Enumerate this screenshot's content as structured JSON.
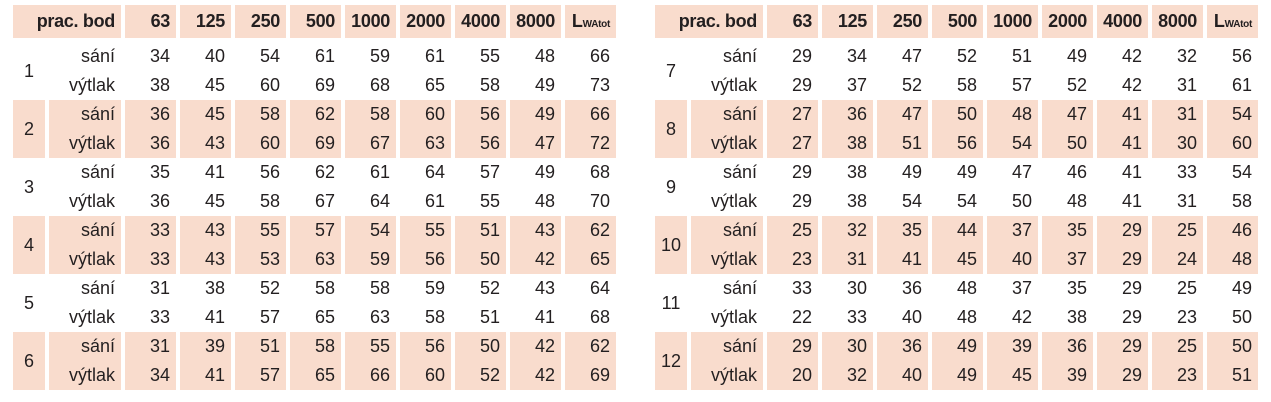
{
  "headers": {
    "first": "prac. bod",
    "bands": [
      "63",
      "125",
      "250",
      "500",
      "1000",
      "2000",
      "4000",
      "8000"
    ],
    "total_main": "L",
    "total_sub": "WAtot"
  },
  "row_labels": {
    "suction": "sání",
    "discharge": "výtlak"
  },
  "colors": {
    "highlight": "#f9dccd",
    "text": "#231f20"
  },
  "left_table": [
    {
      "point": "1",
      "sani": [
        "34",
        "40",
        "54",
        "61",
        "59",
        "61",
        "55",
        "48",
        "66"
      ],
      "vytlak": [
        "38",
        "45",
        "60",
        "69",
        "68",
        "65",
        "58",
        "49",
        "73"
      ]
    },
    {
      "point": "2",
      "sani": [
        "36",
        "45",
        "58",
        "62",
        "58",
        "60",
        "56",
        "49",
        "66"
      ],
      "vytlak": [
        "36",
        "43",
        "60",
        "69",
        "67",
        "63",
        "56",
        "47",
        "72"
      ]
    },
    {
      "point": "3",
      "sani": [
        "35",
        "41",
        "56",
        "62",
        "61",
        "64",
        "57",
        "49",
        "68"
      ],
      "vytlak": [
        "36",
        "45",
        "58",
        "67",
        "64",
        "61",
        "55",
        "48",
        "70"
      ]
    },
    {
      "point": "4",
      "sani": [
        "33",
        "43",
        "55",
        "57",
        "54",
        "55",
        "51",
        "43",
        "62"
      ],
      "vytlak": [
        "33",
        "43",
        "53",
        "63",
        "59",
        "56",
        "50",
        "42",
        "65"
      ]
    },
    {
      "point": "5",
      "sani": [
        "31",
        "38",
        "52",
        "58",
        "58",
        "59",
        "52",
        "43",
        "64"
      ],
      "vytlak": [
        "33",
        "41",
        "57",
        "65",
        "63",
        "58",
        "51",
        "41",
        "68"
      ]
    },
    {
      "point": "6",
      "sani": [
        "31",
        "39",
        "51",
        "58",
        "55",
        "56",
        "50",
        "42",
        "62"
      ],
      "vytlak": [
        "34",
        "41",
        "57",
        "65",
        "66",
        "60",
        "52",
        "42",
        "69"
      ]
    }
  ],
  "right_table": [
    {
      "point": "7",
      "sani": [
        "29",
        "34",
        "47",
        "52",
        "51",
        "49",
        "42",
        "32",
        "56"
      ],
      "vytlak": [
        "29",
        "37",
        "52",
        "58",
        "57",
        "52",
        "42",
        "31",
        "61"
      ]
    },
    {
      "point": "8",
      "sani": [
        "27",
        "36",
        "47",
        "50",
        "48",
        "47",
        "41",
        "31",
        "54"
      ],
      "vytlak": [
        "27",
        "38",
        "51",
        "56",
        "54",
        "50",
        "41",
        "30",
        "60"
      ]
    },
    {
      "point": "9",
      "sani": [
        "29",
        "38",
        "49",
        "49",
        "47",
        "46",
        "41",
        "33",
        "54"
      ],
      "vytlak": [
        "29",
        "38",
        "54",
        "54",
        "50",
        "48",
        "41",
        "31",
        "58"
      ]
    },
    {
      "point": "10",
      "sani": [
        "25",
        "32",
        "35",
        "44",
        "37",
        "35",
        "29",
        "25",
        "46"
      ],
      "vytlak": [
        "23",
        "31",
        "41",
        "45",
        "40",
        "37",
        "29",
        "24",
        "48"
      ]
    },
    {
      "point": "11",
      "sani": [
        "33",
        "30",
        "36",
        "48",
        "37",
        "35",
        "29",
        "25",
        "49"
      ],
      "vytlak": [
        "22",
        "33",
        "40",
        "48",
        "42",
        "38",
        "29",
        "23",
        "50"
      ]
    },
    {
      "point": "12",
      "sani": [
        "29",
        "30",
        "36",
        "49",
        "39",
        "36",
        "29",
        "25",
        "50"
      ],
      "vytlak": [
        "20",
        "32",
        "40",
        "49",
        "45",
        "39",
        "29",
        "23",
        "51"
      ]
    }
  ]
}
